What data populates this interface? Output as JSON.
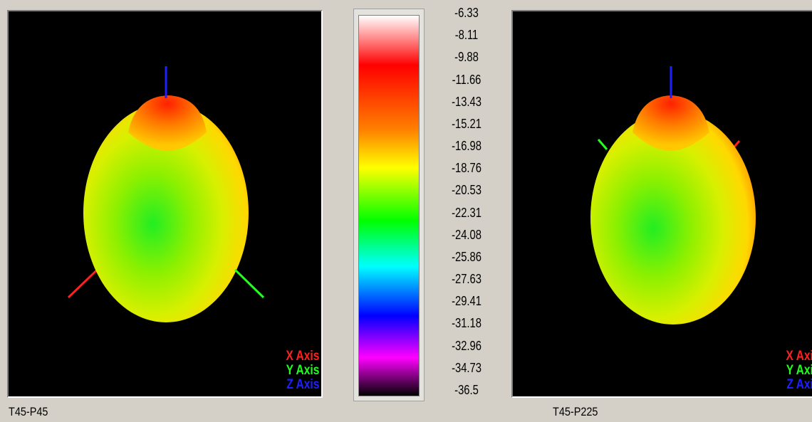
{
  "views": [
    {
      "caption": "T45-P45",
      "legend": [
        {
          "label": "X Axis",
          "color": "#ff2020"
        },
        {
          "label": "Y Axis",
          "color": "#20ff20"
        },
        {
          "label": "Z Axis",
          "color": "#2020ff"
        }
      ]
    },
    {
      "caption": "T45-P225",
      "legend": [
        {
          "label": "X Axi",
          "color": "#ff2020"
        },
        {
          "label": "Y Axi",
          "color": "#20ff20"
        },
        {
          "label": "Z Axi",
          "color": "#2020ff"
        }
      ]
    }
  ],
  "colorbar": {
    "ticks": [
      "-6.33",
      "-8.11",
      "-9.88",
      "-11.66",
      "-13.43",
      "-15.21",
      "-16.98",
      "-18.76",
      "-20.53",
      "-22.31",
      "-24.08",
      "-25.86",
      "-27.63",
      "-29.41",
      "-31.18",
      "-32.96",
      "-34.73",
      "-36.5"
    ],
    "colors": [
      "#ffffff",
      "#ff0000",
      "#ff8000",
      "#ffff00",
      "#00ff00",
      "#00ffff",
      "#0000ff",
      "#ff00ff",
      "#000000"
    ]
  }
}
